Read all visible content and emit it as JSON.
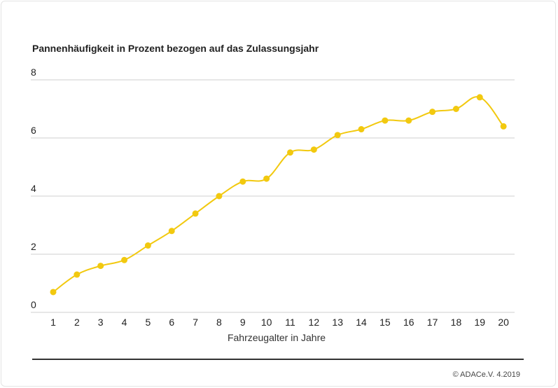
{
  "chart_data": {
    "type": "line",
    "title": "Pannenhäufigkeit in Prozent bezogen auf das Zulassungsjahr",
    "xlabel": "Fahrzeugalter in Jahre",
    "ylabel": "",
    "categories": [
      "1",
      "2",
      "3",
      "4",
      "5",
      "6",
      "7",
      "8",
      "9",
      "10",
      "11",
      "12",
      "13",
      "14",
      "15",
      "16",
      "17",
      "18",
      "19",
      "20"
    ],
    "values": [
      0.7,
      1.3,
      1.6,
      1.8,
      2.3,
      2.8,
      3.4,
      4.0,
      4.5,
      4.6,
      5.5,
      5.6,
      6.1,
      6.3,
      6.6,
      6.6,
      6.9,
      7.0,
      7.4,
      6.4
    ],
    "ylim": [
      0,
      8
    ],
    "yticks": [
      0,
      2,
      4,
      6,
      8
    ],
    "grid": true,
    "line_color": "#f2c90f",
    "grid_color": "#cfcfcf"
  },
  "footer": {
    "copyright": "© ADACe.V. 4.2019"
  }
}
